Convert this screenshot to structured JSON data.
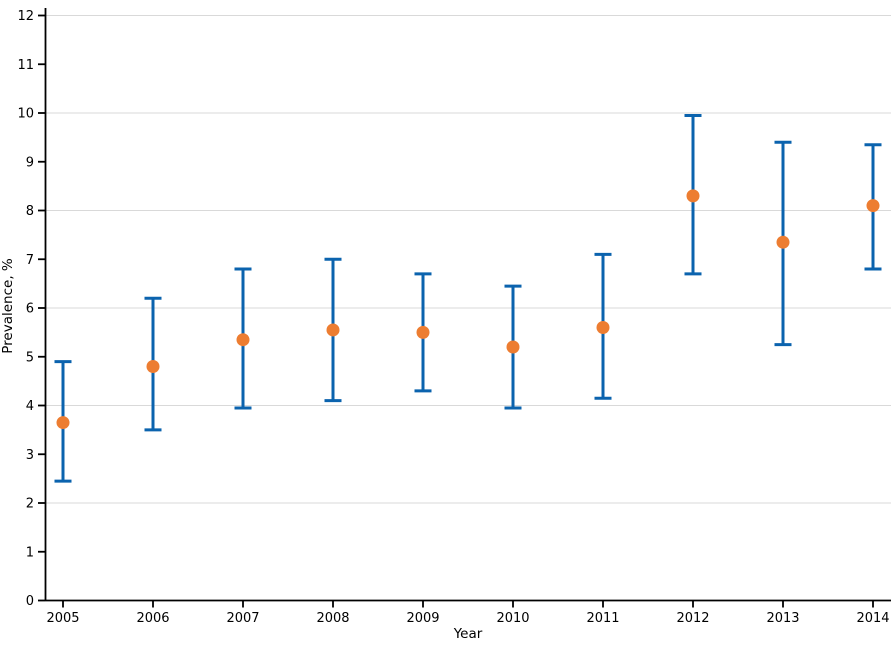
{
  "chart_data": {
    "type": "scatter",
    "title": "",
    "xlabel": "Year",
    "ylabel": "Prevalence, %",
    "ylim": [
      0,
      12
    ],
    "yticks": [
      0,
      1,
      2,
      3,
      4,
      5,
      6,
      7,
      8,
      9,
      10,
      11,
      12
    ],
    "gridlines_at": [
      2,
      4,
      6,
      8,
      10,
      12
    ],
    "grid": "horizontal, light gray, even values only",
    "legend_position": "none",
    "categories": [
      "2005",
      "2006",
      "2007",
      "2008",
      "2009",
      "2010",
      "2011",
      "2012",
      "2013",
      "2014"
    ],
    "series": [
      {
        "name": "Prevalence",
        "marker": "circle",
        "error_bars": "vertical with caps",
        "values": [
          3.65,
          4.8,
          5.35,
          5.55,
          5.5,
          5.2,
          5.6,
          8.3,
          7.35,
          8.1
        ],
        "ci_low": [
          2.45,
          3.5,
          3.95,
          4.1,
          4.3,
          3.95,
          4.15,
          6.7,
          5.25,
          6.8
        ],
        "ci_high": [
          4.9,
          6.2,
          6.8,
          7.0,
          6.7,
          6.45,
          7.1,
          9.95,
          9.4,
          9.35
        ]
      }
    ],
    "colors": {
      "point": "#ED7D31",
      "error_bar": "#0B63AE",
      "gridline": "#D9D9D9",
      "axis": "#000000",
      "background": "#FFFFFF"
    }
  }
}
